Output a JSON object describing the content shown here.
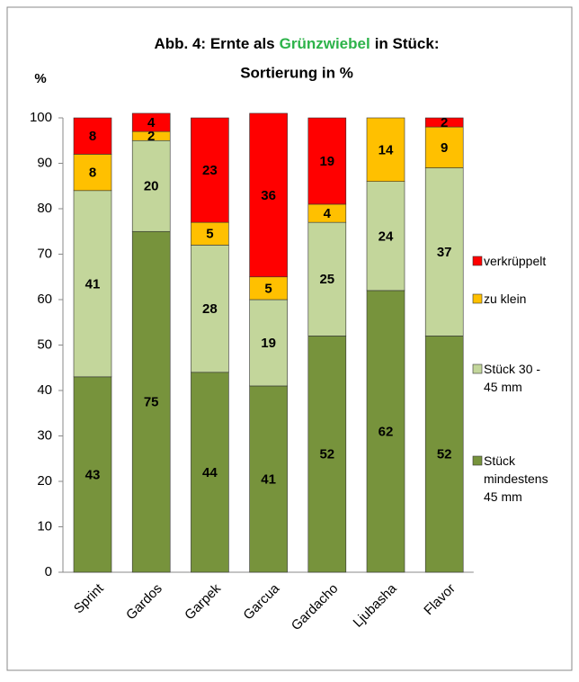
{
  "chart_data": {
    "type": "stacked_bar",
    "title": [
      "Abb. 4: Ernte als",
      "Grünzwiebel",
      "in Stück:",
      "Sortierung in %"
    ],
    "title_highlight_color": "#2db34a",
    "ylabel": "%",
    "categories": [
      "Sprint",
      "Gardos",
      "Garpek",
      "Garcua",
      "Gardacho",
      "Ljubasha",
      "Flavor"
    ],
    "series": [
      {
        "name": "Stück mindestens 45 mm",
        "color": "#77933c",
        "values": [
          43,
          75,
          44,
          41,
          52,
          62,
          52
        ]
      },
      {
        "name": "Stück 30 - 45 mm",
        "color": "#c3d69b",
        "values": [
          41,
          20,
          28,
          19,
          25,
          24,
          37
        ]
      },
      {
        "name": "zu klein",
        "color": "#ffc000",
        "values": [
          8,
          2,
          5,
          5,
          4,
          14,
          9
        ]
      },
      {
        "name": "verkrüppelt",
        "color": "#ff0000",
        "values": [
          8,
          4,
          23,
          36,
          19,
          null,
          2
        ]
      }
    ],
    "ylim": [
      0,
      100
    ],
    "yticks": [
      0,
      10,
      20,
      30,
      40,
      50,
      60,
      70,
      80,
      90,
      100
    ],
    "grid": false,
    "legend": "right"
  }
}
